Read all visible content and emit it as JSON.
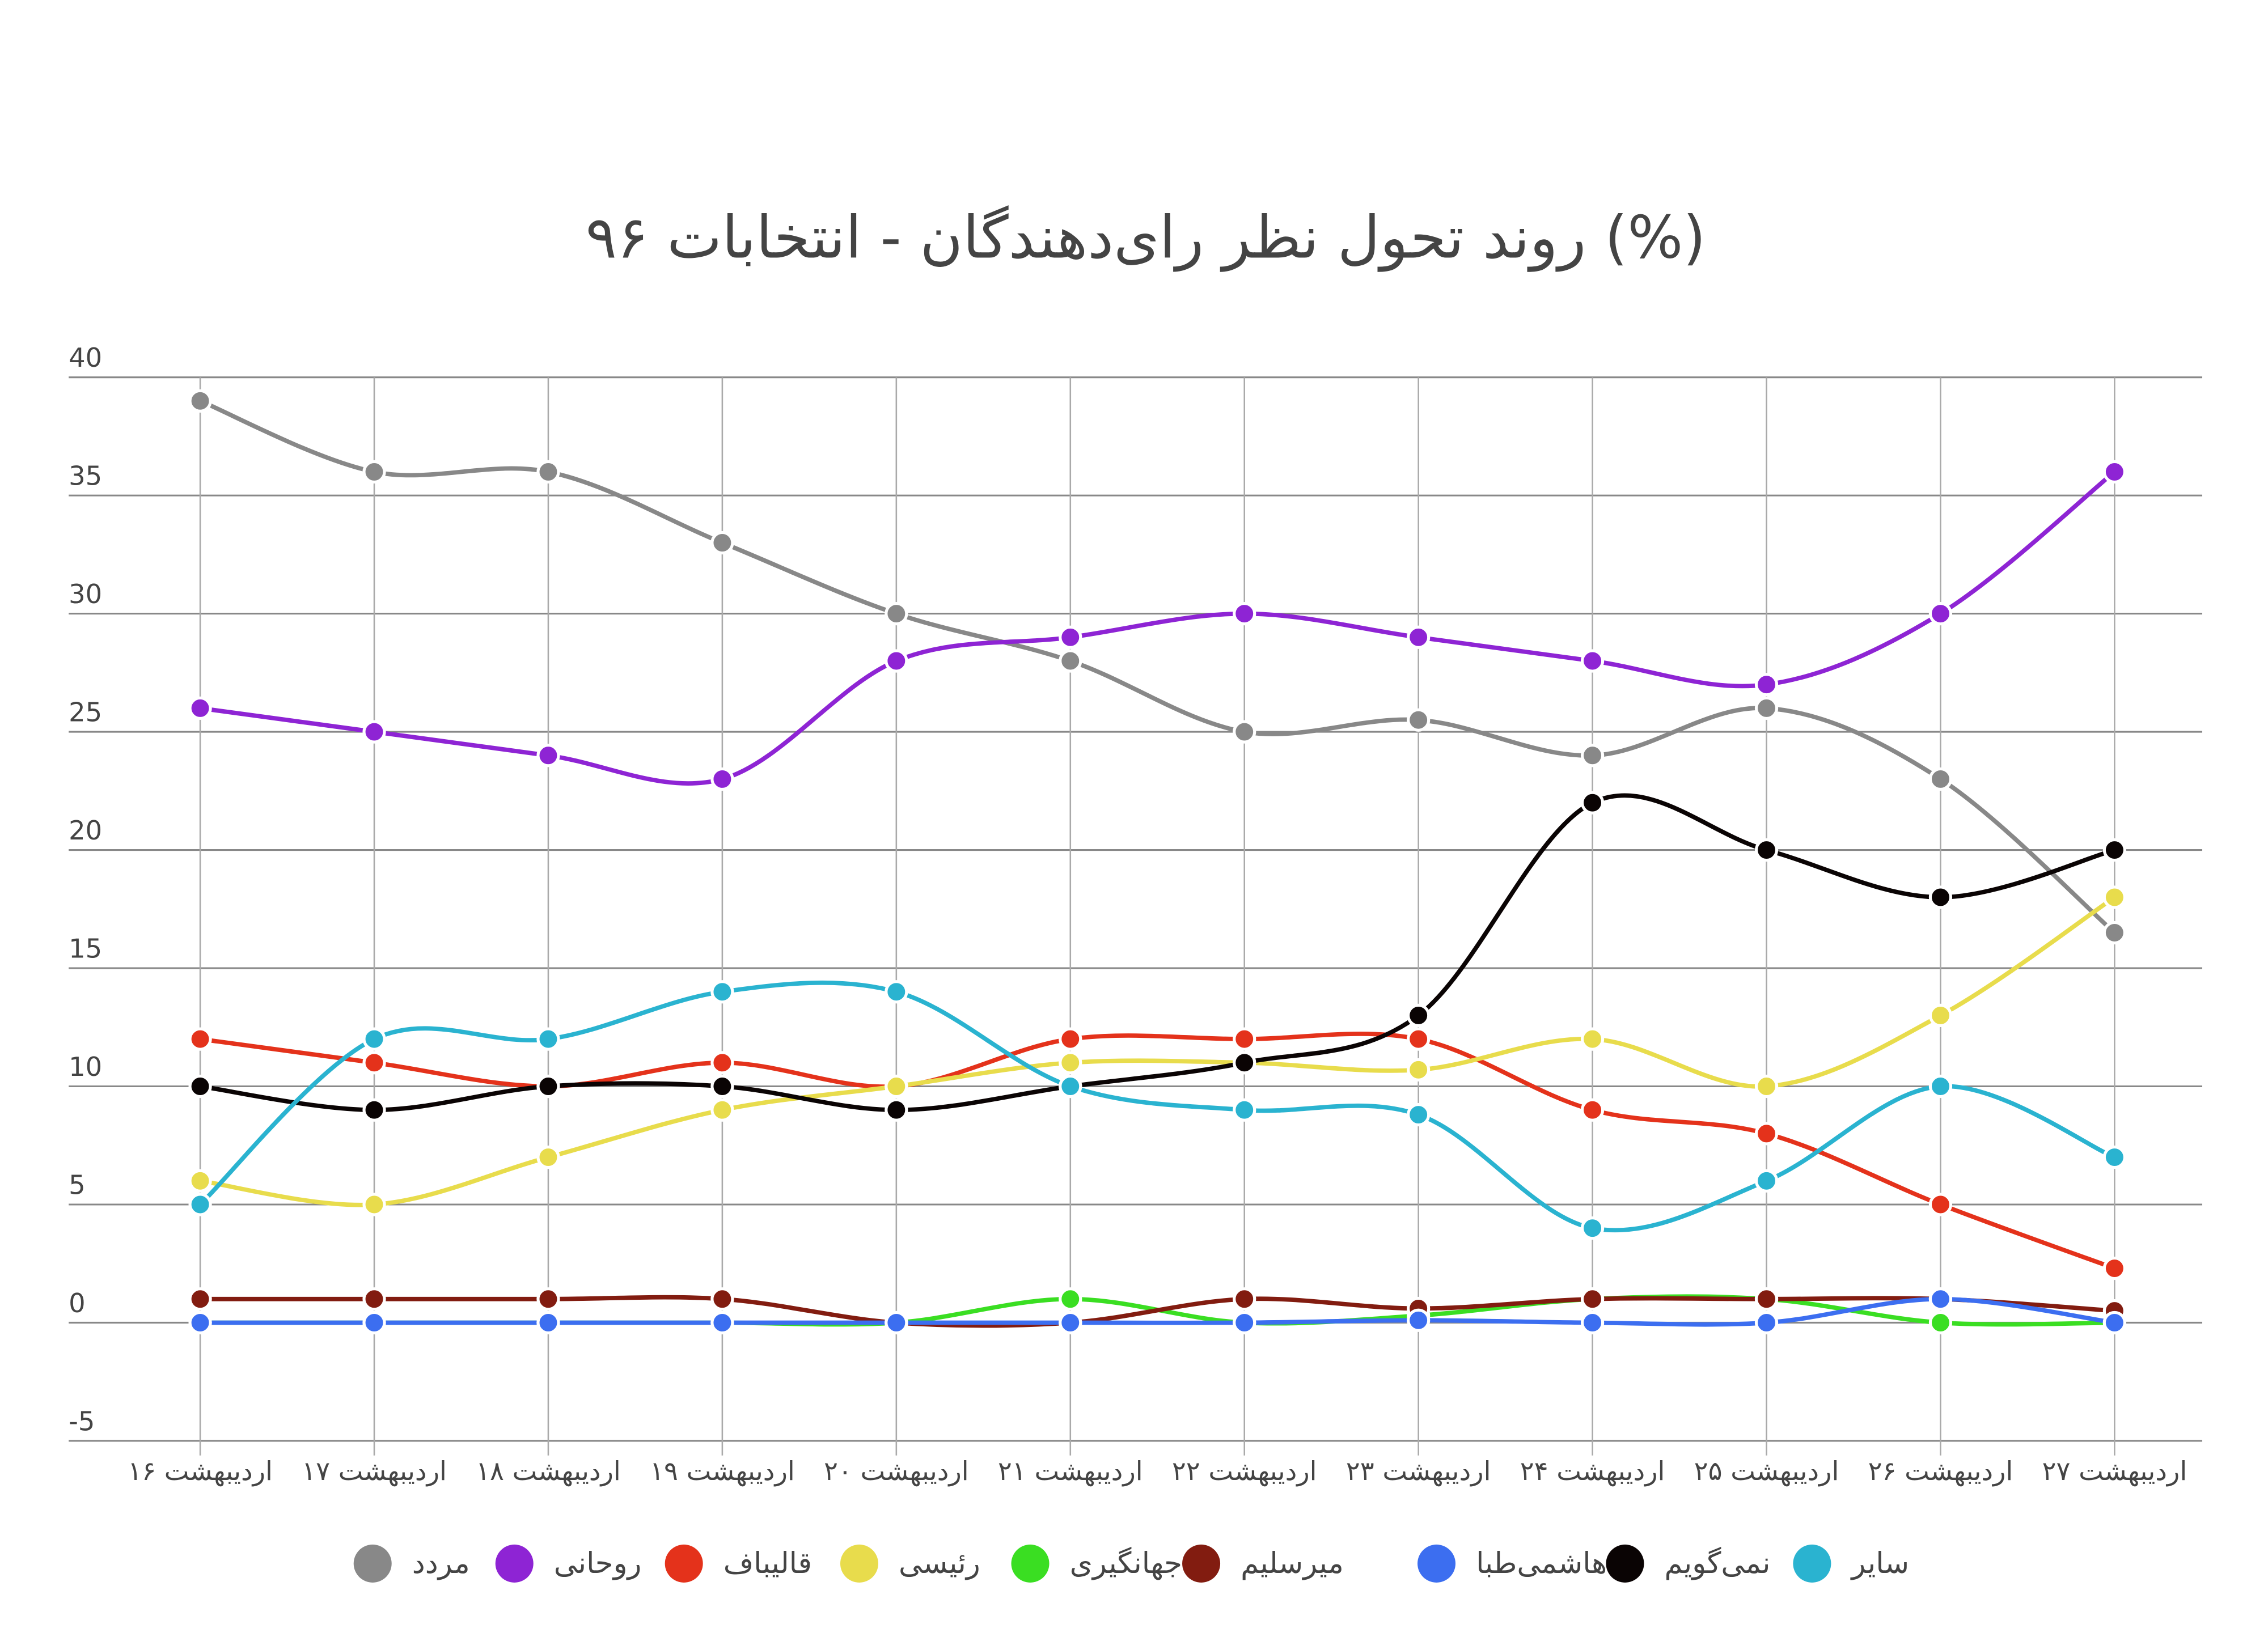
{
  "chart_data": {
    "type": "line",
    "title": "روند تحول نظر رای‌دهندگان - انتخابات ۹۶ (%)",
    "categories": [
      "اردیبهشت ۱۶",
      "اردیبهشت ۱۷",
      "اردیبهشت ۱۸",
      "اردیبهشت ۱۹",
      "اردیبهشت ۲۰",
      "اردیبهشت ۲۱",
      "اردیبهشت ۲۲",
      "اردیبهشت ۲۳",
      "اردیبهشت ۲۴",
      "اردیبهشت ۲۵",
      "اردیبهشت ۲۶",
      "اردیبهشت ۲۷"
    ],
    "series": [
      {
        "name": "مردد",
        "color": "#888888",
        "values": [
          39,
          36,
          36,
          33,
          30,
          28,
          25,
          25.5,
          24,
          26,
          23,
          16.5
        ]
      },
      {
        "name": "روحانی",
        "color": "#8e24d4",
        "values": [
          26,
          25,
          24,
          23,
          28,
          29,
          30,
          29,
          28,
          27,
          30,
          36
        ]
      },
      {
        "name": "قالیباف",
        "color": "#e4321b",
        "values": [
          12,
          11,
          10,
          11,
          10,
          12,
          12,
          12,
          9,
          8,
          5,
          2.3
        ]
      },
      {
        "name": "رئیسی",
        "color": "#e8dc4c",
        "values": [
          6,
          5,
          7,
          9,
          10,
          11,
          11,
          10.7,
          12,
          10,
          13,
          18
        ]
      },
      {
        "name": "جهانگیری",
        "color": "#3ade22",
        "values": [
          0,
          0,
          0,
          0,
          0,
          1,
          0,
          0.3,
          1,
          1,
          0,
          0
        ]
      },
      {
        "name": "میرسلیم",
        "color": "#821c10",
        "values": [
          1,
          1,
          1,
          1,
          0,
          0,
          1,
          0.6,
          1,
          1,
          1,
          0.5
        ]
      },
      {
        "name": "هاشمی‌طبا",
        "color": "#3c6ef0",
        "values": [
          0,
          0,
          0,
          0,
          0,
          0,
          0,
          0.1,
          0,
          0,
          1,
          0
        ]
      },
      {
        "name": "نمی‌گویم",
        "color": "#0a0404",
        "values": [
          10,
          9,
          10,
          10,
          9,
          10,
          11,
          13,
          22,
          20,
          18,
          20
        ]
      },
      {
        "name": "سایر",
        "color": "#2ab3d0",
        "values": [
          5,
          12,
          12,
          14,
          14,
          10,
          9,
          8.8,
          4,
          6,
          10,
          7
        ]
      }
    ],
    "ylim": [
      -5,
      40
    ],
    "yticks": [
      -5,
      0,
      5,
      10,
      15,
      20,
      25,
      30,
      35,
      40
    ],
    "grid": true
  }
}
